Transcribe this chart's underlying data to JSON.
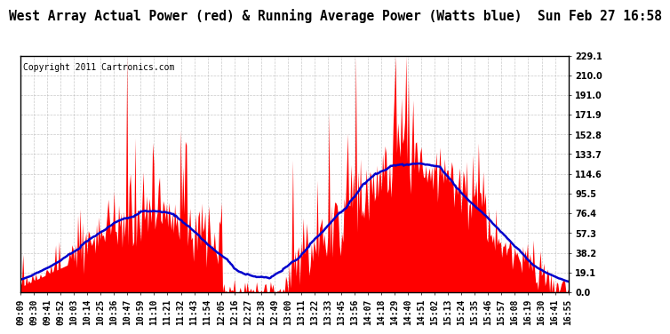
{
  "title": "West Array Actual Power (red) & Running Average Power (Watts blue)  Sun Feb 27 16:58",
  "copyright": "Copyright 2011 Cartronics.com",
  "ylabel_values": [
    0.0,
    19.1,
    38.2,
    57.3,
    76.4,
    95.5,
    114.6,
    133.7,
    152.8,
    171.9,
    191.0,
    210.0,
    229.1
  ],
  "ymax": 229.1,
  "ymin": 0.0,
  "background_color": "#ffffff",
  "plot_bg_color": "#ffffff",
  "grid_color": "#bbbbbb",
  "bar_color": "#ff0000",
  "avg_color": "#0000cc",
  "title_fontsize": 10.5,
  "copyright_fontsize": 7,
  "tick_fontsize": 7,
  "xtick_labels": [
    "09:09",
    "09:30",
    "09:41",
    "09:52",
    "10:03",
    "10:14",
    "10:25",
    "10:36",
    "10:47",
    "10:59",
    "11:10",
    "11:21",
    "11:32",
    "11:43",
    "11:54",
    "12:05",
    "12:16",
    "12:27",
    "12:38",
    "12:49",
    "13:00",
    "13:11",
    "13:22",
    "13:33",
    "13:45",
    "13:56",
    "14:07",
    "14:18",
    "14:29",
    "14:40",
    "14:51",
    "15:02",
    "15:13",
    "15:24",
    "15:35",
    "15:46",
    "15:57",
    "16:08",
    "16:19",
    "16:30",
    "16:41",
    "16:55"
  ]
}
